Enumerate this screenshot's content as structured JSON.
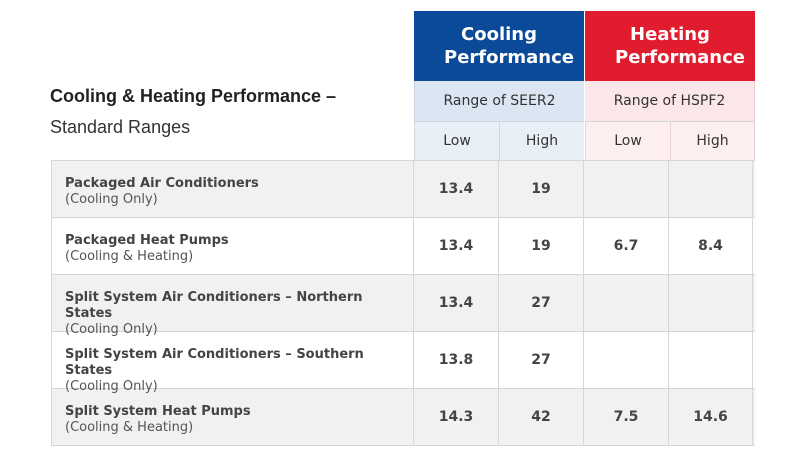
{
  "title": {
    "line1": "Cooling & Heating Performance –",
    "line2": "Standard Ranges"
  },
  "headers": {
    "cooling": "Cooling Performance",
    "heating": "Heating Performance",
    "cooling_range": "Range of SEER2",
    "heating_range": "Range of HSPF2",
    "low": "Low",
    "high": "High"
  },
  "colors": {
    "cooling_header": "#0a4a99",
    "heating_header": "#e21c2f"
  },
  "rows": [
    {
      "name": "Packaged Air Conditioners",
      "note": "(Cooling Only)",
      "seer_low": "13.4",
      "seer_high": "19",
      "hspf_low": "",
      "hspf_high": ""
    },
    {
      "name": "Packaged Heat Pumps",
      "note": "(Cooling & Heating)",
      "seer_low": "13.4",
      "seer_high": "19",
      "hspf_low": "6.7",
      "hspf_high": "8.4"
    },
    {
      "name": "Split System Air Conditioners – Northern States",
      "note": "(Cooling Only)",
      "seer_low": "13.4",
      "seer_high": "27",
      "hspf_low": "",
      "hspf_high": ""
    },
    {
      "name": "Split System Air Conditioners – Southern States",
      "note": "(Cooling Only)",
      "seer_low": "13.8",
      "seer_high": "27",
      "hspf_low": "",
      "hspf_high": ""
    },
    {
      "name": "Split System Heat Pumps",
      "note": "(Cooling & Heating)",
      "seer_low": "14.3",
      "seer_high": "42",
      "hspf_low": "7.5",
      "hspf_high": "14.6"
    }
  ]
}
